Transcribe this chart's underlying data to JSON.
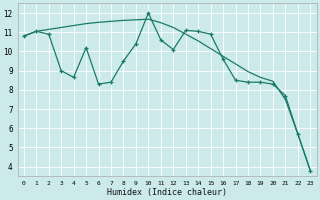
{
  "background_color": "#cceaea",
  "grid_color": "#ffffff",
  "line_color": "#1a7a6a",
  "xlabel": "Humidex (Indice chaleur)",
  "ylim": [
    3.5,
    12.5
  ],
  "xlim": [
    -0.5,
    23.5
  ],
  "yticks": [
    4,
    5,
    6,
    7,
    8,
    9,
    10,
    11,
    12
  ],
  "xticks": [
    0,
    1,
    2,
    3,
    4,
    5,
    6,
    7,
    8,
    9,
    10,
    11,
    12,
    13,
    14,
    15,
    16,
    17,
    18,
    19,
    20,
    21,
    22,
    23
  ],
  "line1_x": [
    0,
    1,
    2,
    3,
    4,
    5,
    6,
    7,
    8,
    9,
    10,
    11,
    12,
    13,
    14,
    15,
    16,
    17,
    18,
    19,
    20,
    21,
    22,
    23
  ],
  "line1_y": [
    10.8,
    11.05,
    11.15,
    11.25,
    11.35,
    11.45,
    11.52,
    11.57,
    11.62,
    11.65,
    11.68,
    11.5,
    11.25,
    10.9,
    10.55,
    10.15,
    9.75,
    9.35,
    8.95,
    8.65,
    8.45,
    7.5,
    5.7,
    3.8
  ],
  "line2_x": [
    0,
    1,
    2,
    3,
    4,
    5,
    6,
    7,
    8,
    9,
    10,
    11,
    12,
    13,
    14,
    15,
    16,
    17,
    18,
    19,
    20,
    21,
    22,
    23
  ],
  "line2_y": [
    10.8,
    11.05,
    10.9,
    9.0,
    8.65,
    10.2,
    8.3,
    8.4,
    9.5,
    10.4,
    12.0,
    10.6,
    10.1,
    11.1,
    11.05,
    10.9,
    9.6,
    8.5,
    8.4,
    8.4,
    8.3,
    7.7,
    5.7,
    3.8
  ]
}
